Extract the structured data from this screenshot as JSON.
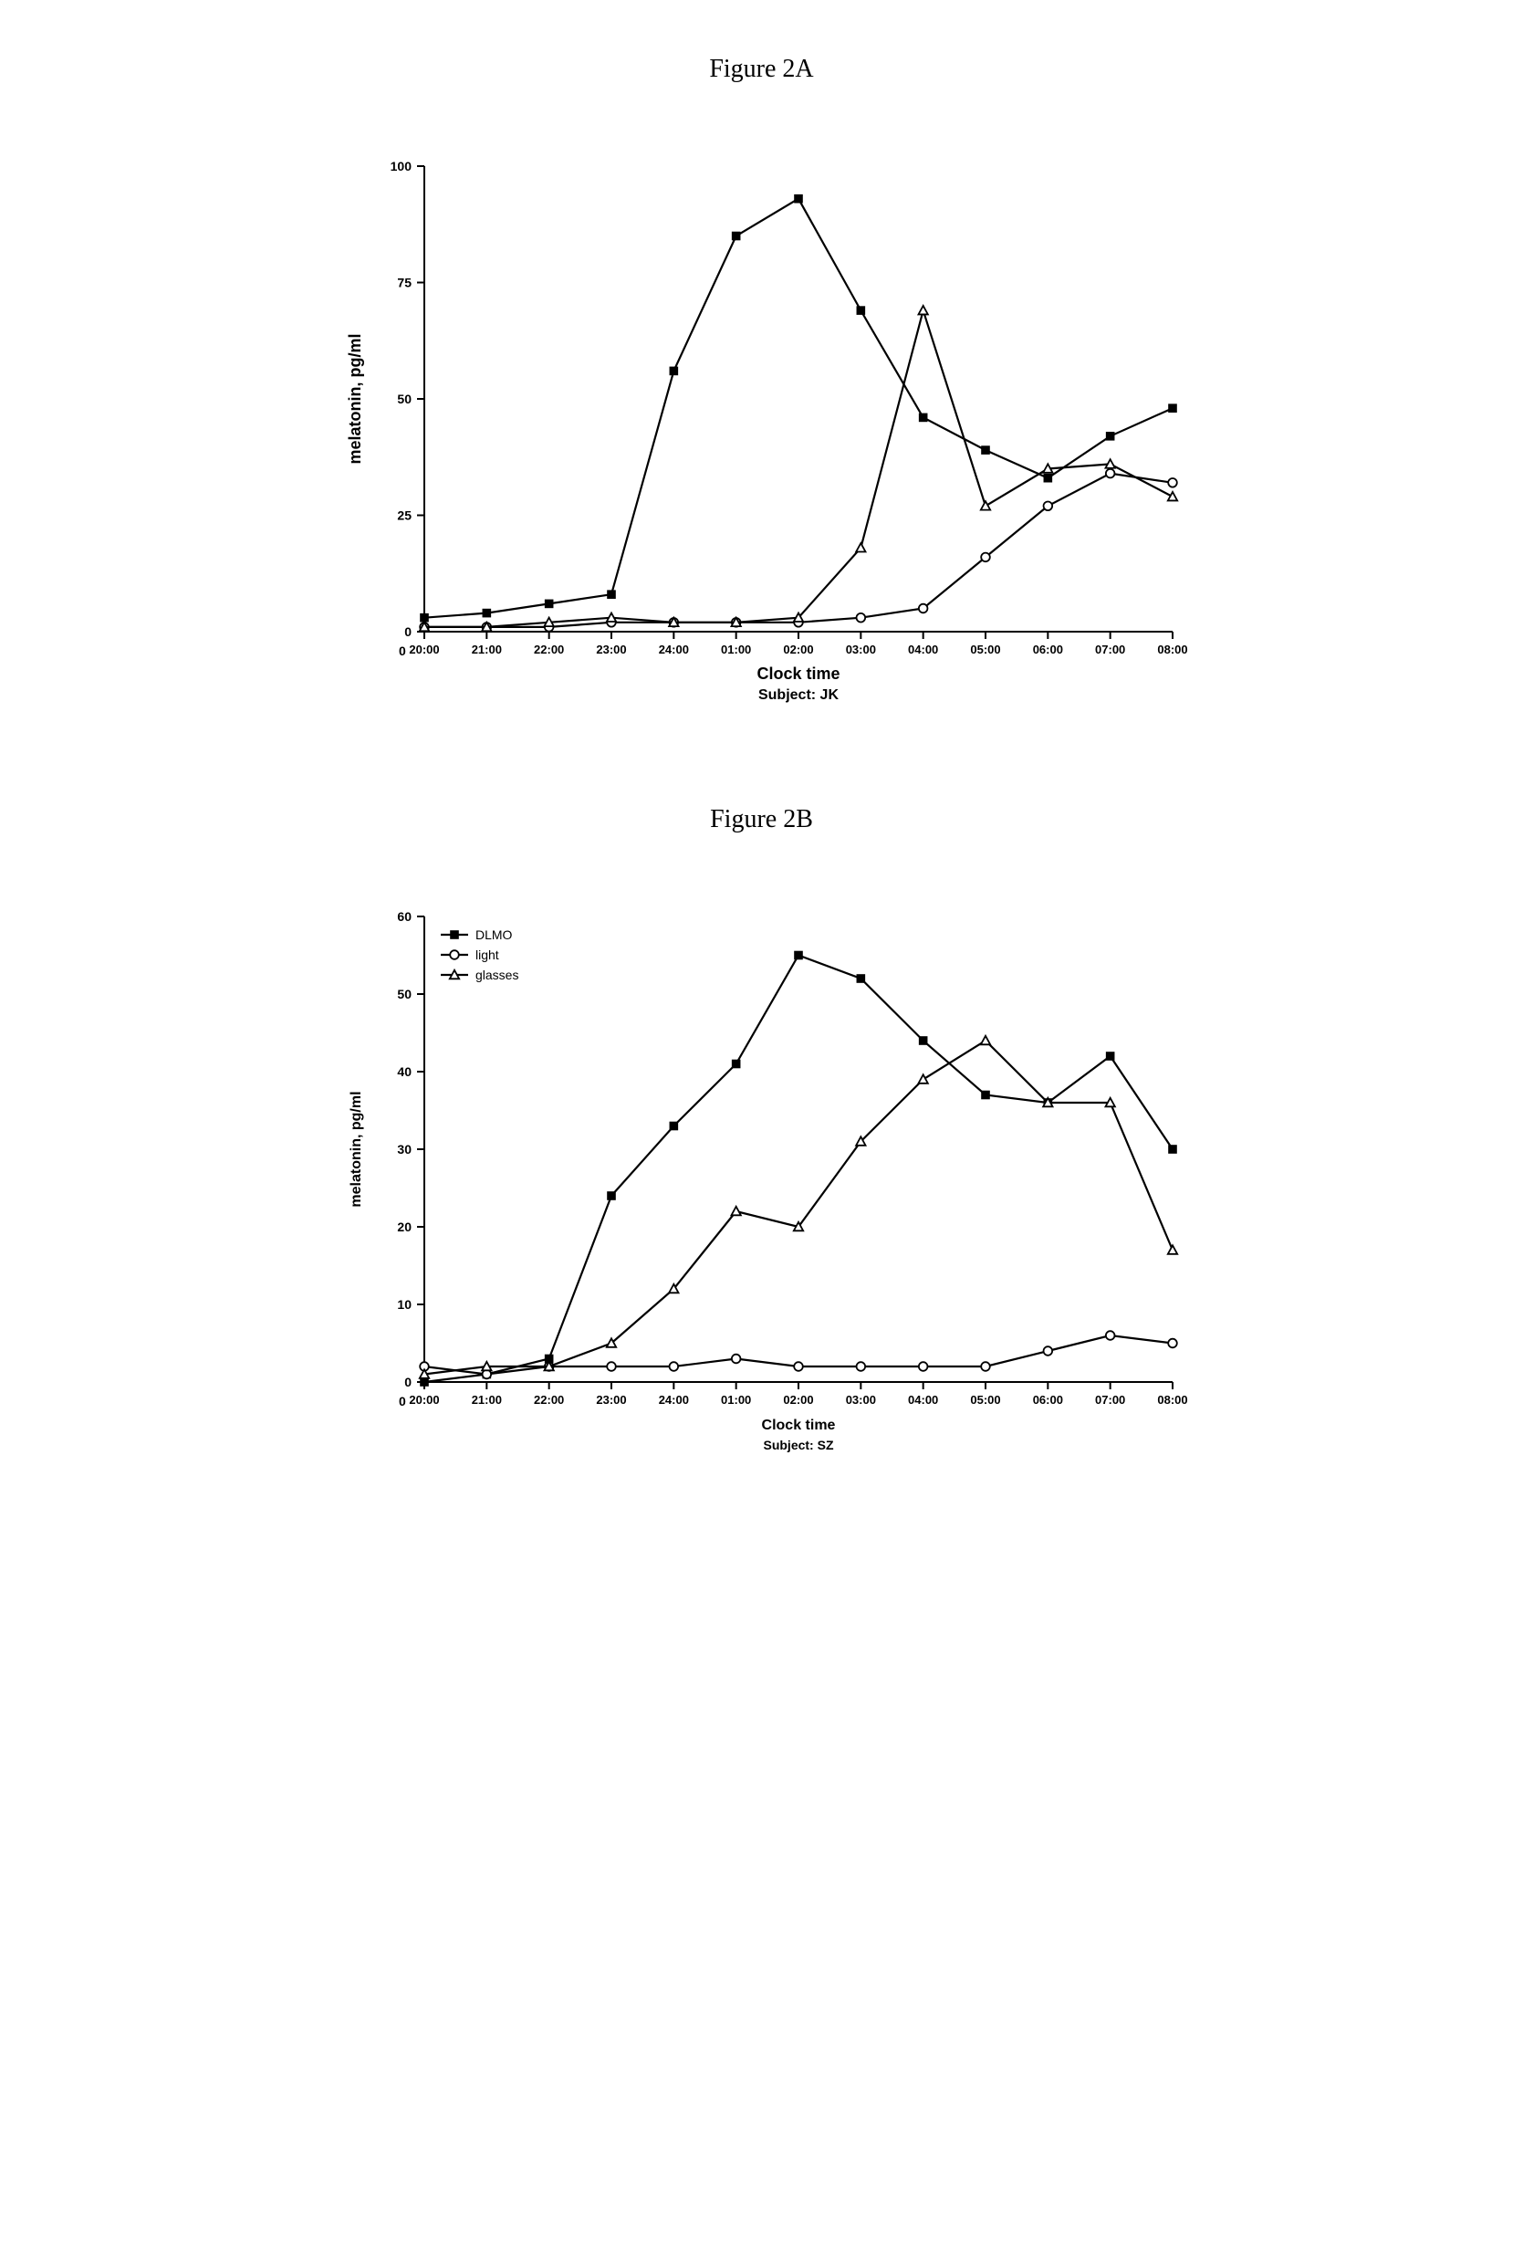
{
  "figureA": {
    "title": "Figure 2A",
    "type": "line",
    "xlabel": "Clock time",
    "sublabel": "Subject: JK",
    "ylabel": "melatonin, pg/ml",
    "x_categories": [
      "20:00",
      "21:00",
      "22:00",
      "23:00",
      "24:00",
      "01:00",
      "02:00",
      "03:00",
      "04:00",
      "05:00",
      "06:00",
      "07:00",
      "08:00"
    ],
    "ylim": [
      0,
      100
    ],
    "ytick_step": 25,
    "yticks": [
      0,
      25,
      50,
      75,
      100
    ],
    "stroke_color": "#000000",
    "axis_color": "#000000",
    "background_color": "#ffffff",
    "line_width": 2.2,
    "axis_width": 2,
    "marker_size": 6,
    "tick_fontsize": 14,
    "label_fontsize": 18,
    "title_fontsize": 28,
    "series": {
      "DLMO": {
        "marker": "square-filled",
        "values": [
          3,
          4,
          6,
          8,
          56,
          85,
          93,
          69,
          46,
          39,
          33,
          42,
          48
        ]
      },
      "light": {
        "marker": "circle-open",
        "values": [
          1,
          1,
          1,
          2,
          2,
          2,
          2,
          3,
          5,
          16,
          27,
          34,
          32
        ]
      },
      "glasses": {
        "marker": "triangle-open",
        "values": [
          1,
          1,
          2,
          3,
          2,
          2,
          3,
          18,
          69,
          27,
          35,
          36,
          29
        ]
      }
    }
  },
  "figureB": {
    "title": "Figure 2B",
    "type": "line",
    "xlabel": "Clock time",
    "sublabel": "Subject: SZ",
    "ylabel": "melatonin, pg/ml",
    "x_categories": [
      "20:00",
      "21:00",
      "22:00",
      "23:00",
      "24:00",
      "01:00",
      "02:00",
      "03:00",
      "04:00",
      "05:00",
      "06:00",
      "07:00",
      "08:00"
    ],
    "ylim": [
      0,
      60
    ],
    "ytick_step": 10,
    "yticks": [
      0,
      10,
      20,
      30,
      40,
      50,
      60
    ],
    "stroke_color": "#000000",
    "axis_color": "#000000",
    "background_color": "#ffffff",
    "line_width": 2.2,
    "axis_width": 2,
    "marker_size": 6,
    "tick_fontsize": 14,
    "label_fontsize": 16,
    "title_fontsize": 28,
    "legend": {
      "items": [
        {
          "key": "DLMO",
          "label": "DLMO",
          "marker": "square-filled"
        },
        {
          "key": "light",
          "label": "light",
          "marker": "circle-open"
        },
        {
          "key": "glasses",
          "label": "glasses",
          "marker": "triangle-open"
        }
      ],
      "position": "top-left-inside",
      "fontsize": 14,
      "box_stroke": "#000000"
    },
    "series": {
      "DLMO": {
        "marker": "square-filled",
        "values": [
          0,
          1,
          3,
          24,
          33,
          41,
          55,
          52,
          44,
          37,
          36,
          42,
          30
        ]
      },
      "light": {
        "marker": "circle-open",
        "values": [
          2,
          1,
          2,
          2,
          2,
          3,
          2,
          2,
          2,
          2,
          4,
          6,
          5
        ]
      },
      "glasses": {
        "marker": "triangle-open",
        "values": [
          1,
          2,
          2,
          5,
          12,
          22,
          20,
          31,
          39,
          44,
          36,
          36,
          17
        ]
      }
    }
  }
}
